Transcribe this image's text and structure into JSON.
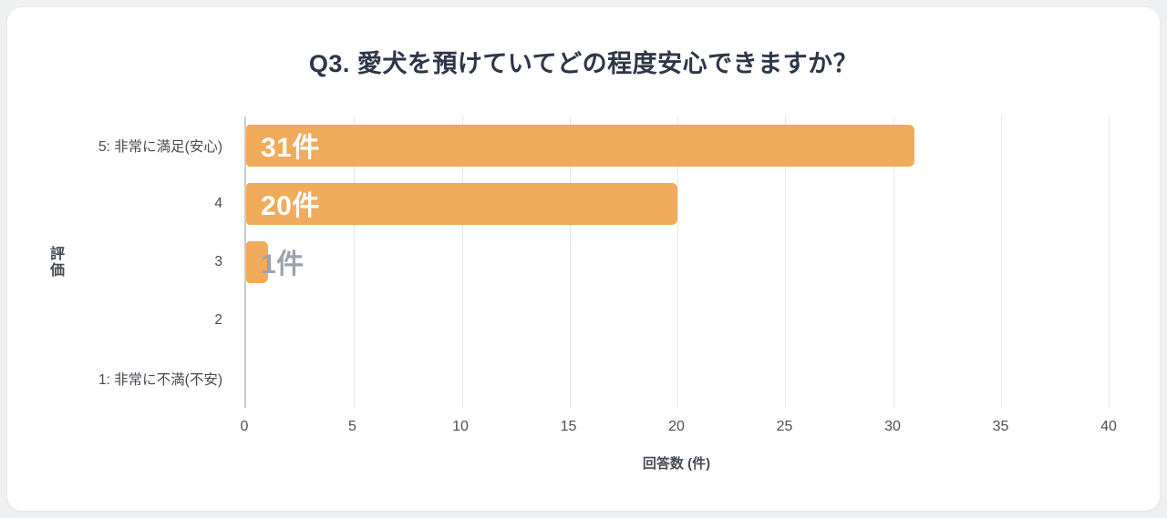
{
  "chart_data": {
    "type": "bar",
    "orientation": "horizontal",
    "title": "Q3. 愛犬を預けていてどの程度安心できますか？",
    "categories": [
      "5: 非常に満足(安心)",
      "4",
      "3",
      "2",
      "1: 非常に不満(不安)"
    ],
    "values": [
      31,
      20,
      1,
      0,
      0
    ],
    "value_labels": [
      "31件",
      "20件",
      "1件",
      "",
      ""
    ],
    "xlabel": "回答数 (件)",
    "ylabel": "評価",
    "xlim": [
      0,
      40
    ],
    "xticks": [
      0,
      5,
      10,
      15,
      20,
      25,
      30,
      35,
      40
    ],
    "grid": true,
    "legend": "none",
    "bar_color": "#f0ab5b",
    "label_color_inside": "#ffffff",
    "label_color_outside": "#9aa3ad"
  }
}
